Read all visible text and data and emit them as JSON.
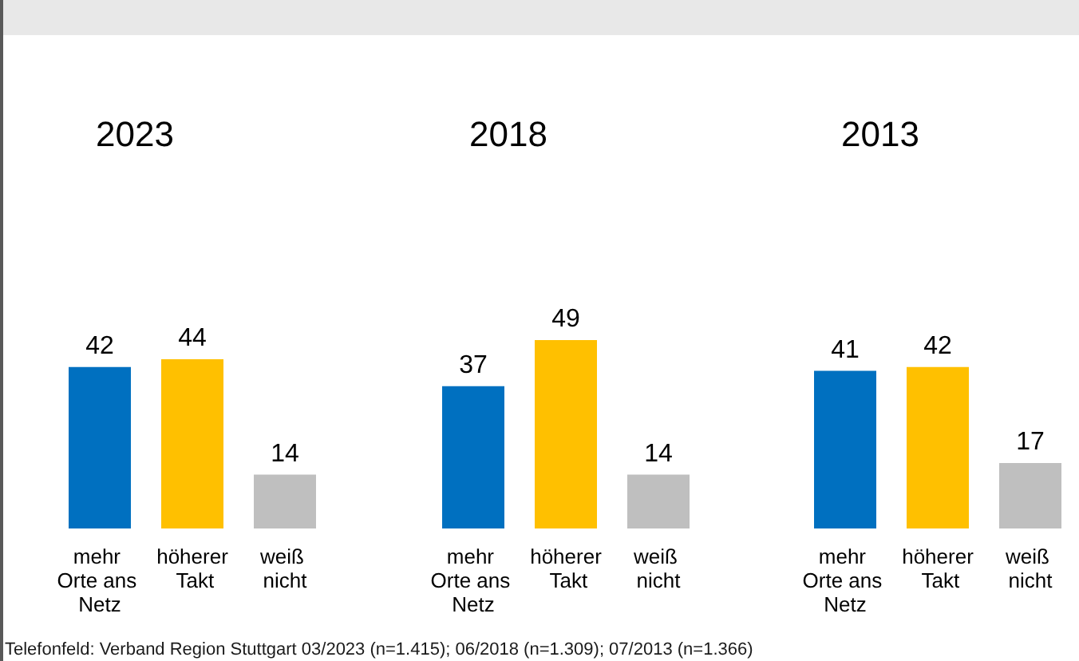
{
  "chart_data": [
    {
      "type": "bar",
      "title": "2023",
      "categories": [
        "mehr Orte ans Netz",
        "höherer Takt",
        "weiß nicht"
      ],
      "values": [
        42,
        44,
        14
      ],
      "colors": [
        "#0070c0",
        "#ffc000",
        "#bfbfbf"
      ],
      "data_labels": true,
      "tick_labels": "x",
      "annotations": [
        "Telefonfeld: Verband Region Stuttgart 03/2023 (n=1.415); 06/2018 (n=1.309); 07/2013 (n=1.366)"
      ]
    },
    {
      "type": "bar",
      "title": "2018",
      "categories": [
        "mehr Orte ans Netz",
        "höherer Takt",
        "weiß nicht"
      ],
      "values": [
        37,
        49,
        14
      ],
      "colors": [
        "#0070c0",
        "#ffc000",
        "#bfbfbf"
      ],
      "data_labels": true,
      "tick_labels": "x"
    },
    {
      "type": "bar",
      "title": "2013",
      "categories": [
        "mehr Orte ans Netz",
        "höherer Takt",
        "weiß nicht"
      ],
      "values": [
        41,
        42,
        17
      ],
      "colors": [
        "#0070c0",
        "#ffc000",
        "#bfbfbf"
      ],
      "data_labels": true,
      "tick_labels": "x"
    }
  ]
}
